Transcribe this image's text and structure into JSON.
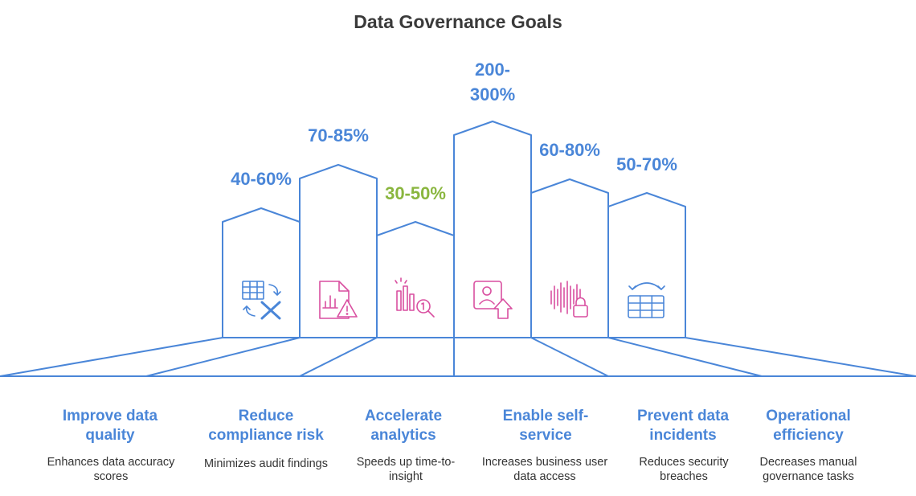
{
  "title": "Data Governance Goals",
  "colors": {
    "blue": "#4a86d8",
    "green": "#8ab63f",
    "pink": "#d94fa0"
  },
  "goals": [
    {
      "value": "40-60%",
      "value_color": "blue",
      "icon": "spreadsheet-swap-icon",
      "label": "Improve data quality",
      "desc": "Enhances data accuracy scores"
    },
    {
      "value": "70-85%",
      "value_color": "blue",
      "icon": "report-warning-icon",
      "label": "Reduce compliance risk",
      "desc": "Minimizes audit findings"
    },
    {
      "value": "30-50%",
      "value_color": "green",
      "icon": "chart-search-icon",
      "label": "Accelerate analytics",
      "desc": "Speeds up time-to-insight"
    },
    {
      "value": "200-300%",
      "value_color": "blue",
      "icon": "user-upload-icon",
      "label": "Enable self-service",
      "desc": "Increases business user data access"
    },
    {
      "value": "60-80%",
      "value_color": "blue",
      "icon": "audio-lock-icon",
      "label": "Prevent data incidents",
      "desc": "Reduces security breaches"
    },
    {
      "value": "50-70%",
      "value_color": "blue",
      "icon": "grid-transfer-icon",
      "label": "Operational efficiency",
      "desc": "Decreases manual governance tasks"
    }
  ]
}
